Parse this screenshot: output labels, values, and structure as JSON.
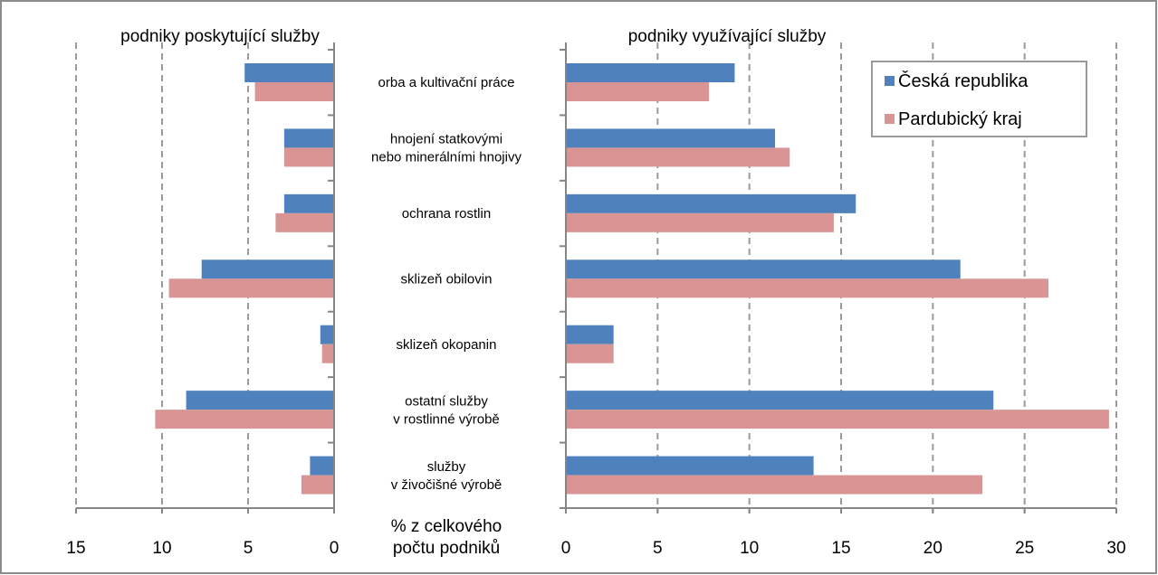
{
  "chart_data": {
    "type": "bar",
    "orientation": "horizontal",
    "panels": [
      {
        "id": "left",
        "title": "podniky poskytující služby",
        "xlim": [
          15,
          0
        ],
        "ticks": [
          "15",
          "10",
          "5",
          "0"
        ],
        "tick_values": [
          15,
          10,
          5,
          0
        ],
        "series": [
          {
            "name": "Česká republika",
            "values": [
              5.2,
              2.9,
              2.9,
              7.7,
              0.8,
              8.6,
              1.4
            ]
          },
          {
            "name": "Pardubický kraj",
            "values": [
              4.6,
              2.9,
              3.4,
              9.6,
              0.7,
              10.4,
              1.9
            ]
          }
        ]
      },
      {
        "id": "right",
        "title": "podniky využívající služby",
        "xlim": [
          0,
          30
        ],
        "ticks": [
          "0",
          "5",
          "10",
          "15",
          "20",
          "25",
          "30"
        ],
        "tick_values": [
          0,
          5,
          10,
          15,
          20,
          25,
          30
        ],
        "series": [
          {
            "name": "Česká republika",
            "values": [
              9.2,
              11.4,
              15.8,
              21.5,
              2.6,
              23.3,
              13.5
            ]
          },
          {
            "name": "Pardubický kraj",
            "values": [
              7.8,
              12.2,
              14.6,
              26.3,
              2.6,
              29.6,
              22.7
            ]
          }
        ]
      }
    ],
    "categories": [
      [
        "orba a kultivační práce"
      ],
      [
        "hnojení statkovými",
        "nebo minerálními  hnojivy"
      ],
      [
        "ochrana rostlin"
      ],
      [
        "sklizeň obilovin"
      ],
      [
        "sklizeň okopanin"
      ],
      [
        "ostatní služby",
        "v rostlinné výrobě"
      ],
      [
        "služby",
        "v živočišné výrobě"
      ]
    ],
    "xlabel": [
      "% z celkového",
      "počtu podniků"
    ],
    "legend": [
      {
        "name": "Česká republika",
        "color": "#4f81bd"
      },
      {
        "name": "Pardubický kraj",
        "color": "#d99594"
      }
    ],
    "legend_position": "top-right",
    "grid": true,
    "colors": {
      "cr": "#4f81bd",
      "pk": "#d99594"
    }
  }
}
